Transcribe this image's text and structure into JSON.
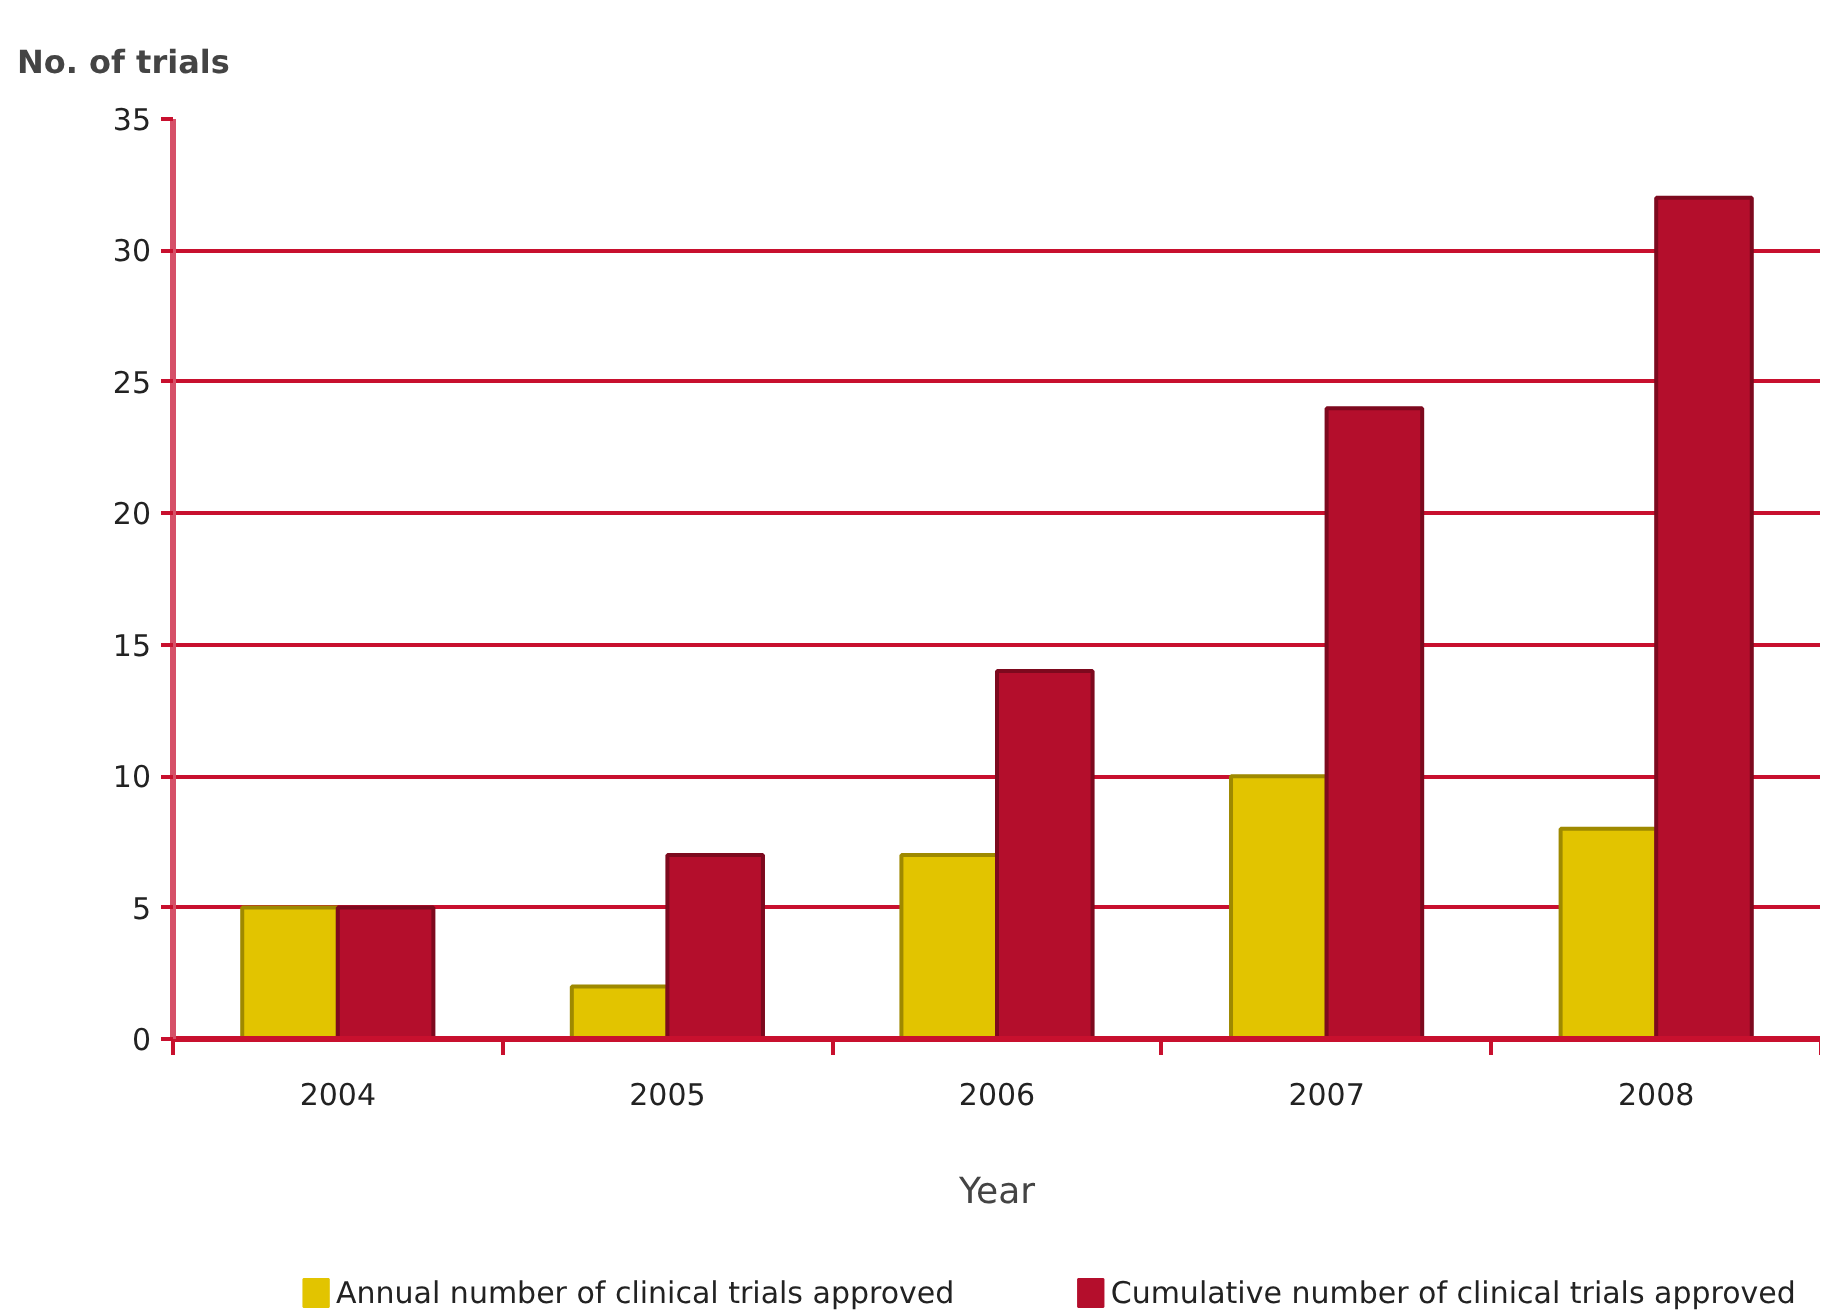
{
  "chart_data": {
    "type": "bar",
    "ylabel": "No. of trials",
    "xlabel": "Year",
    "categories": [
      "2004",
      "2005",
      "2006",
      "2007",
      "2008"
    ],
    "series": [
      {
        "name": "Annual number of clinical trials approved",
        "color": "#e2c400",
        "values": [
          5,
          2,
          7,
          10,
          8
        ]
      },
      {
        "name": "Cumulative number of clinical trials approved",
        "color": "#b40e2c",
        "values": [
          5,
          7,
          14,
          24,
          32
        ]
      }
    ],
    "ylim": [
      0,
      35
    ],
    "yticks": [
      0,
      5,
      10,
      15,
      20,
      25,
      30,
      35
    ],
    "grid": "y",
    "legend": "bottom"
  }
}
